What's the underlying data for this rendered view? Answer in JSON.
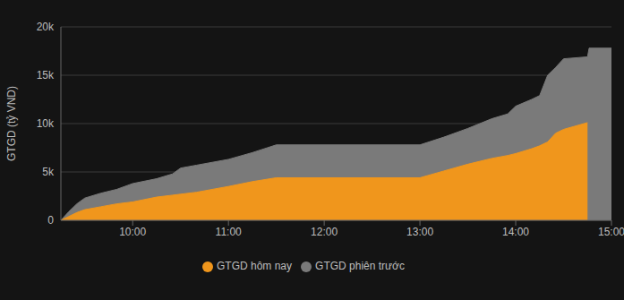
{
  "chart_data": {
    "type": "area",
    "y_label": "GTGD (tỷ VND)",
    "x": [
      555,
      560,
      565,
      570,
      580,
      590,
      600,
      615,
      625,
      630,
      640,
      660,
      675,
      690,
      780,
      795,
      810,
      825,
      835,
      840,
      850,
      855,
      860,
      865,
      870,
      885,
      886,
      900
    ],
    "series": [
      {
        "name": "GTGD phiên trước",
        "color": "#7a7a7a",
        "values": [
          0,
          900,
          1700,
          2300,
          2800,
          3200,
          3800,
          4300,
          4800,
          5400,
          5700,
          6300,
          7000,
          7800,
          7800,
          8600,
          9500,
          10500,
          11000,
          11800,
          12500,
          12900,
          15000,
          15800,
          16700,
          16900,
          17800,
          17800
        ]
      },
      {
        "name": "GTGD hôm nay",
        "color": "#f0961c",
        "values": [
          0,
          400,
          800,
          1100,
          1400,
          1700,
          1900,
          2400,
          2600,
          2700,
          2900,
          3500,
          4000,
          4400,
          4400,
          5100,
          5800,
          6400,
          6700,
          6900,
          7400,
          7700,
          8100,
          9000,
          9400,
          10100,
          null,
          null
        ]
      }
    ],
    "xlim": [
      555,
      900
    ],
    "xticks": [
      {
        "value": 600,
        "label": "10:00"
      },
      {
        "value": 660,
        "label": "11:00"
      },
      {
        "value": 720,
        "label": "12:00"
      },
      {
        "value": 780,
        "label": "13:00"
      },
      {
        "value": 840,
        "label": "14:00"
      },
      {
        "value": 900,
        "label": "15:00"
      }
    ],
    "ylim": [
      0,
      20000
    ],
    "yticks": [
      0,
      {
        "value": 5000,
        "label": "5k"
      },
      {
        "value": 10000,
        "label": "10k"
      },
      {
        "value": 15000,
        "label": "15k"
      },
      {
        "value": 20000,
        "label": "20k"
      }
    ],
    "grid": true,
    "legend": "bottom"
  }
}
